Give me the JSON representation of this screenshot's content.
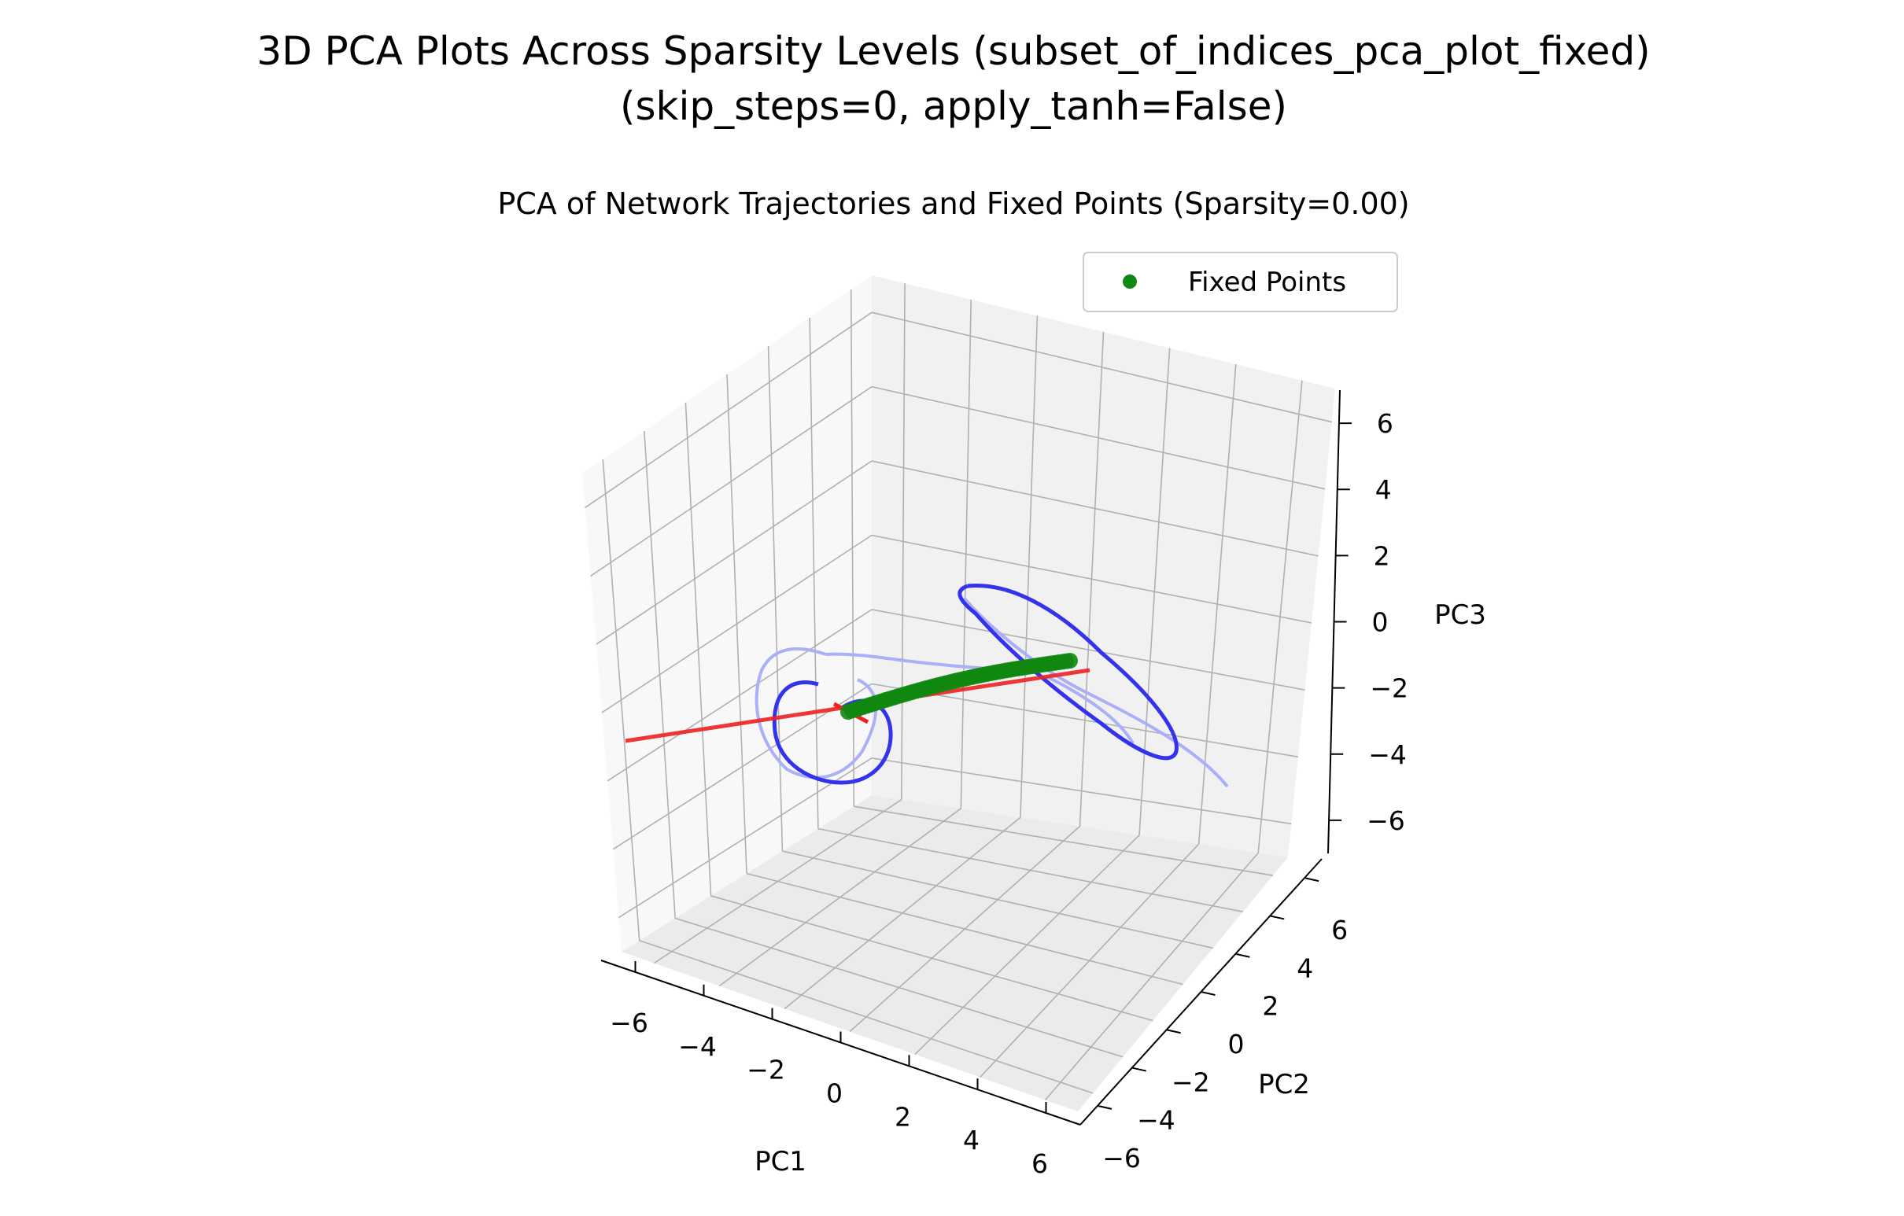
{
  "figure": {
    "suptitle_line1": "3D PCA Plots Across Sparsity Levels (subset_of_indices_pca_plot_fixed)",
    "suptitle_line2": "(skip_steps=0, apply_tanh=False)"
  },
  "chart_data": {
    "type": "scatter",
    "projection": "3d",
    "title": "PCA of Network Trajectories and Fixed Points (Sparsity=0.00)",
    "xlabel": "PC1",
    "ylabel": "PC2",
    "zlabel": "PC3",
    "xlim": [
      -7,
      7
    ],
    "ylim": [
      -7,
      7
    ],
    "zlim": [
      -7,
      7
    ],
    "xticks": [
      "−6",
      "−4",
      "−2",
      "0",
      "2",
      "4",
      "6"
    ],
    "yticks": [
      "−6",
      "−4",
      "−2",
      "0",
      "2",
      "4",
      "6"
    ],
    "zticks": [
      "−6",
      "−4",
      "−2",
      "0",
      "2",
      "4",
      "6"
    ],
    "grid": true,
    "legend": {
      "position": "top-right",
      "entries": [
        "Fixed Points"
      ]
    },
    "colors": {
      "trajectory": "#3333ee",
      "trajectory_faded": "#aab0f8",
      "unstable_mode": "#ee2222",
      "fixed_points": "#118811"
    },
    "series": [
      {
        "name": "Fixed Points",
        "kind": "scatter",
        "note_x": [
          -0.5,
          -0.2,
          0.2,
          0.6,
          1.0,
          1.5,
          2.0,
          2.5,
          3.0,
          3.5,
          4.0,
          4.5,
          5.0,
          5.3
        ],
        "x": [
          -0.5,
          -0.2,
          0.2,
          0.6,
          1.0,
          1.5,
          2.0,
          2.5,
          3.0,
          3.5,
          4.0,
          4.5,
          5.0,
          5.3
        ],
        "y": [
          1.0,
          1.0,
          1.1,
          1.2,
          1.3,
          1.4,
          1.5,
          1.6,
          1.7,
          1.8,
          1.9,
          2.0,
          2.1,
          2.1
        ],
        "z": [
          -0.2,
          0.0,
          0.2,
          0.4,
          0.6,
          0.8,
          1.0,
          1.2,
          1.4,
          1.6,
          1.8,
          2.0,
          2.2,
          2.3
        ]
      }
    ]
  }
}
